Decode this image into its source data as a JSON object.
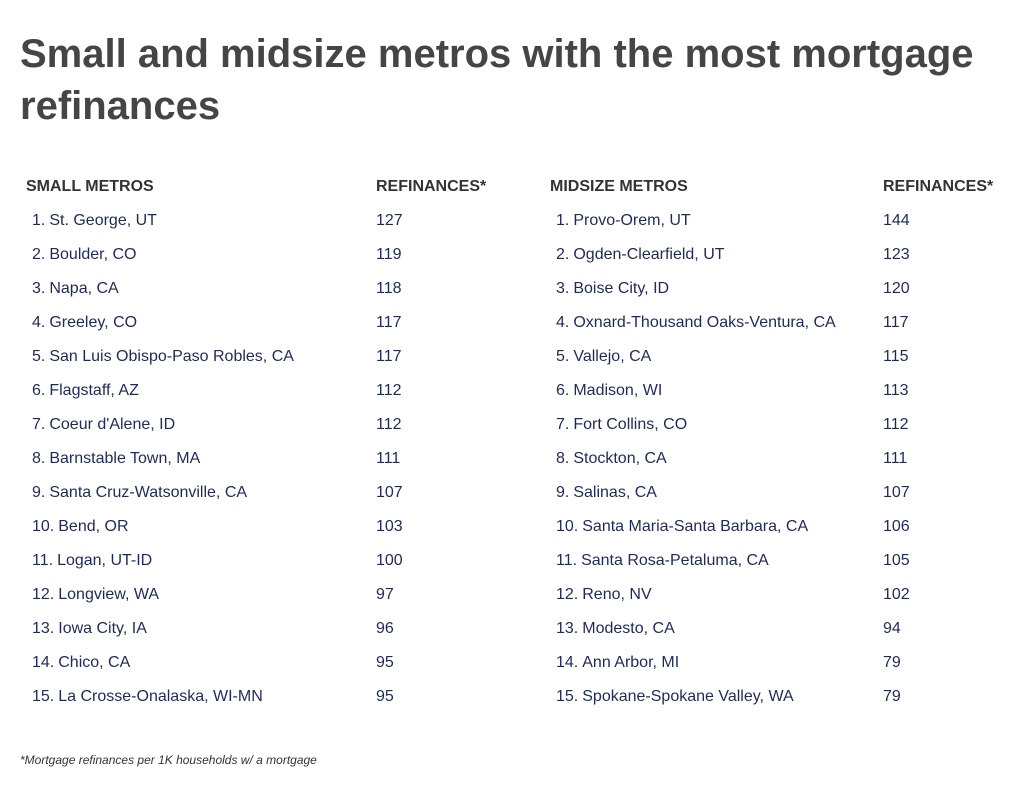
{
  "title": "Small and midsize metros with the most mortgage refinances",
  "footnote": "*Mortgage refinances per 1K households w/ a mortgage",
  "colors": {
    "title": "#454545",
    "row_text": "#1f2a5c",
    "header_text": "#333333"
  },
  "chart_data": [
    {
      "type": "table",
      "columns": [
        "SMALL METROS",
        "REFINANCES*"
      ],
      "rows": [
        {
          "rank": "1.",
          "metro": "St. George, UT",
          "value": "127"
        },
        {
          "rank": "2.",
          "metro": "Boulder, CO",
          "value": "119"
        },
        {
          "rank": "3.",
          "metro": "Napa, CA",
          "value": "118"
        },
        {
          "rank": "4.",
          "metro": "Greeley, CO",
          "value": "117"
        },
        {
          "rank": "5.",
          "metro": "San Luis Obispo-Paso Robles, CA",
          "value": "117"
        },
        {
          "rank": "6.",
          "metro": "Flagstaff, AZ",
          "value": "112"
        },
        {
          "rank": "7.",
          "metro": "Coeur d'Alene, ID",
          "value": "112"
        },
        {
          "rank": "8.",
          "metro": "Barnstable Town, MA",
          "value": "111"
        },
        {
          "rank": "9.",
          "metro": "Santa Cruz-Watsonville, CA",
          "value": "107"
        },
        {
          "rank": "10.",
          "metro": "Bend, OR",
          "value": "103"
        },
        {
          "rank": "11.",
          "metro": "Logan, UT-ID",
          "value": "100"
        },
        {
          "rank": "12.",
          "metro": "Longview, WA",
          "value": "97"
        },
        {
          "rank": "13.",
          "metro": "Iowa City, IA",
          "value": "96"
        },
        {
          "rank": "14.",
          "metro": "Chico, CA",
          "value": "95"
        },
        {
          "rank": "15.",
          "metro": "La Crosse-Onalaska, WI-MN",
          "value": "95"
        }
      ]
    },
    {
      "type": "table",
      "columns": [
        "MIDSIZE METROS",
        "REFINANCES*"
      ],
      "rows": [
        {
          "rank": "1.",
          "metro": "Provo-Orem, UT",
          "value": "144"
        },
        {
          "rank": "2.",
          "metro": "Ogden-Clearfield, UT",
          "value": "123"
        },
        {
          "rank": "3.",
          "metro": "Boise City, ID",
          "value": "120"
        },
        {
          "rank": "4.",
          "metro": "Oxnard-Thousand Oaks-Ventura, CA",
          "value": "117"
        },
        {
          "rank": "5.",
          "metro": "Vallejo, CA",
          "value": "115"
        },
        {
          "rank": "6.",
          "metro": "Madison, WI",
          "value": "113"
        },
        {
          "rank": "7.",
          "metro": "Fort Collins, CO",
          "value": "112"
        },
        {
          "rank": "8.",
          "metro": "Stockton, CA",
          "value": "111"
        },
        {
          "rank": "9.",
          "metro": "Salinas, CA",
          "value": "107"
        },
        {
          "rank": "10.",
          "metro": "Santa Maria-Santa Barbara, CA",
          "value": "106"
        },
        {
          "rank": "11.",
          "metro": "Santa Rosa-Petaluma, CA",
          "value": "105"
        },
        {
          "rank": "12.",
          "metro": "Reno, NV",
          "value": "102"
        },
        {
          "rank": "13.",
          "metro": "Modesto, CA",
          "value": "94"
        },
        {
          "rank": "14.",
          "metro": "Ann Arbor, MI",
          "value": "79"
        },
        {
          "rank": "15.",
          "metro": "Spokane-Spokane Valley, WA",
          "value": "79"
        }
      ]
    }
  ]
}
